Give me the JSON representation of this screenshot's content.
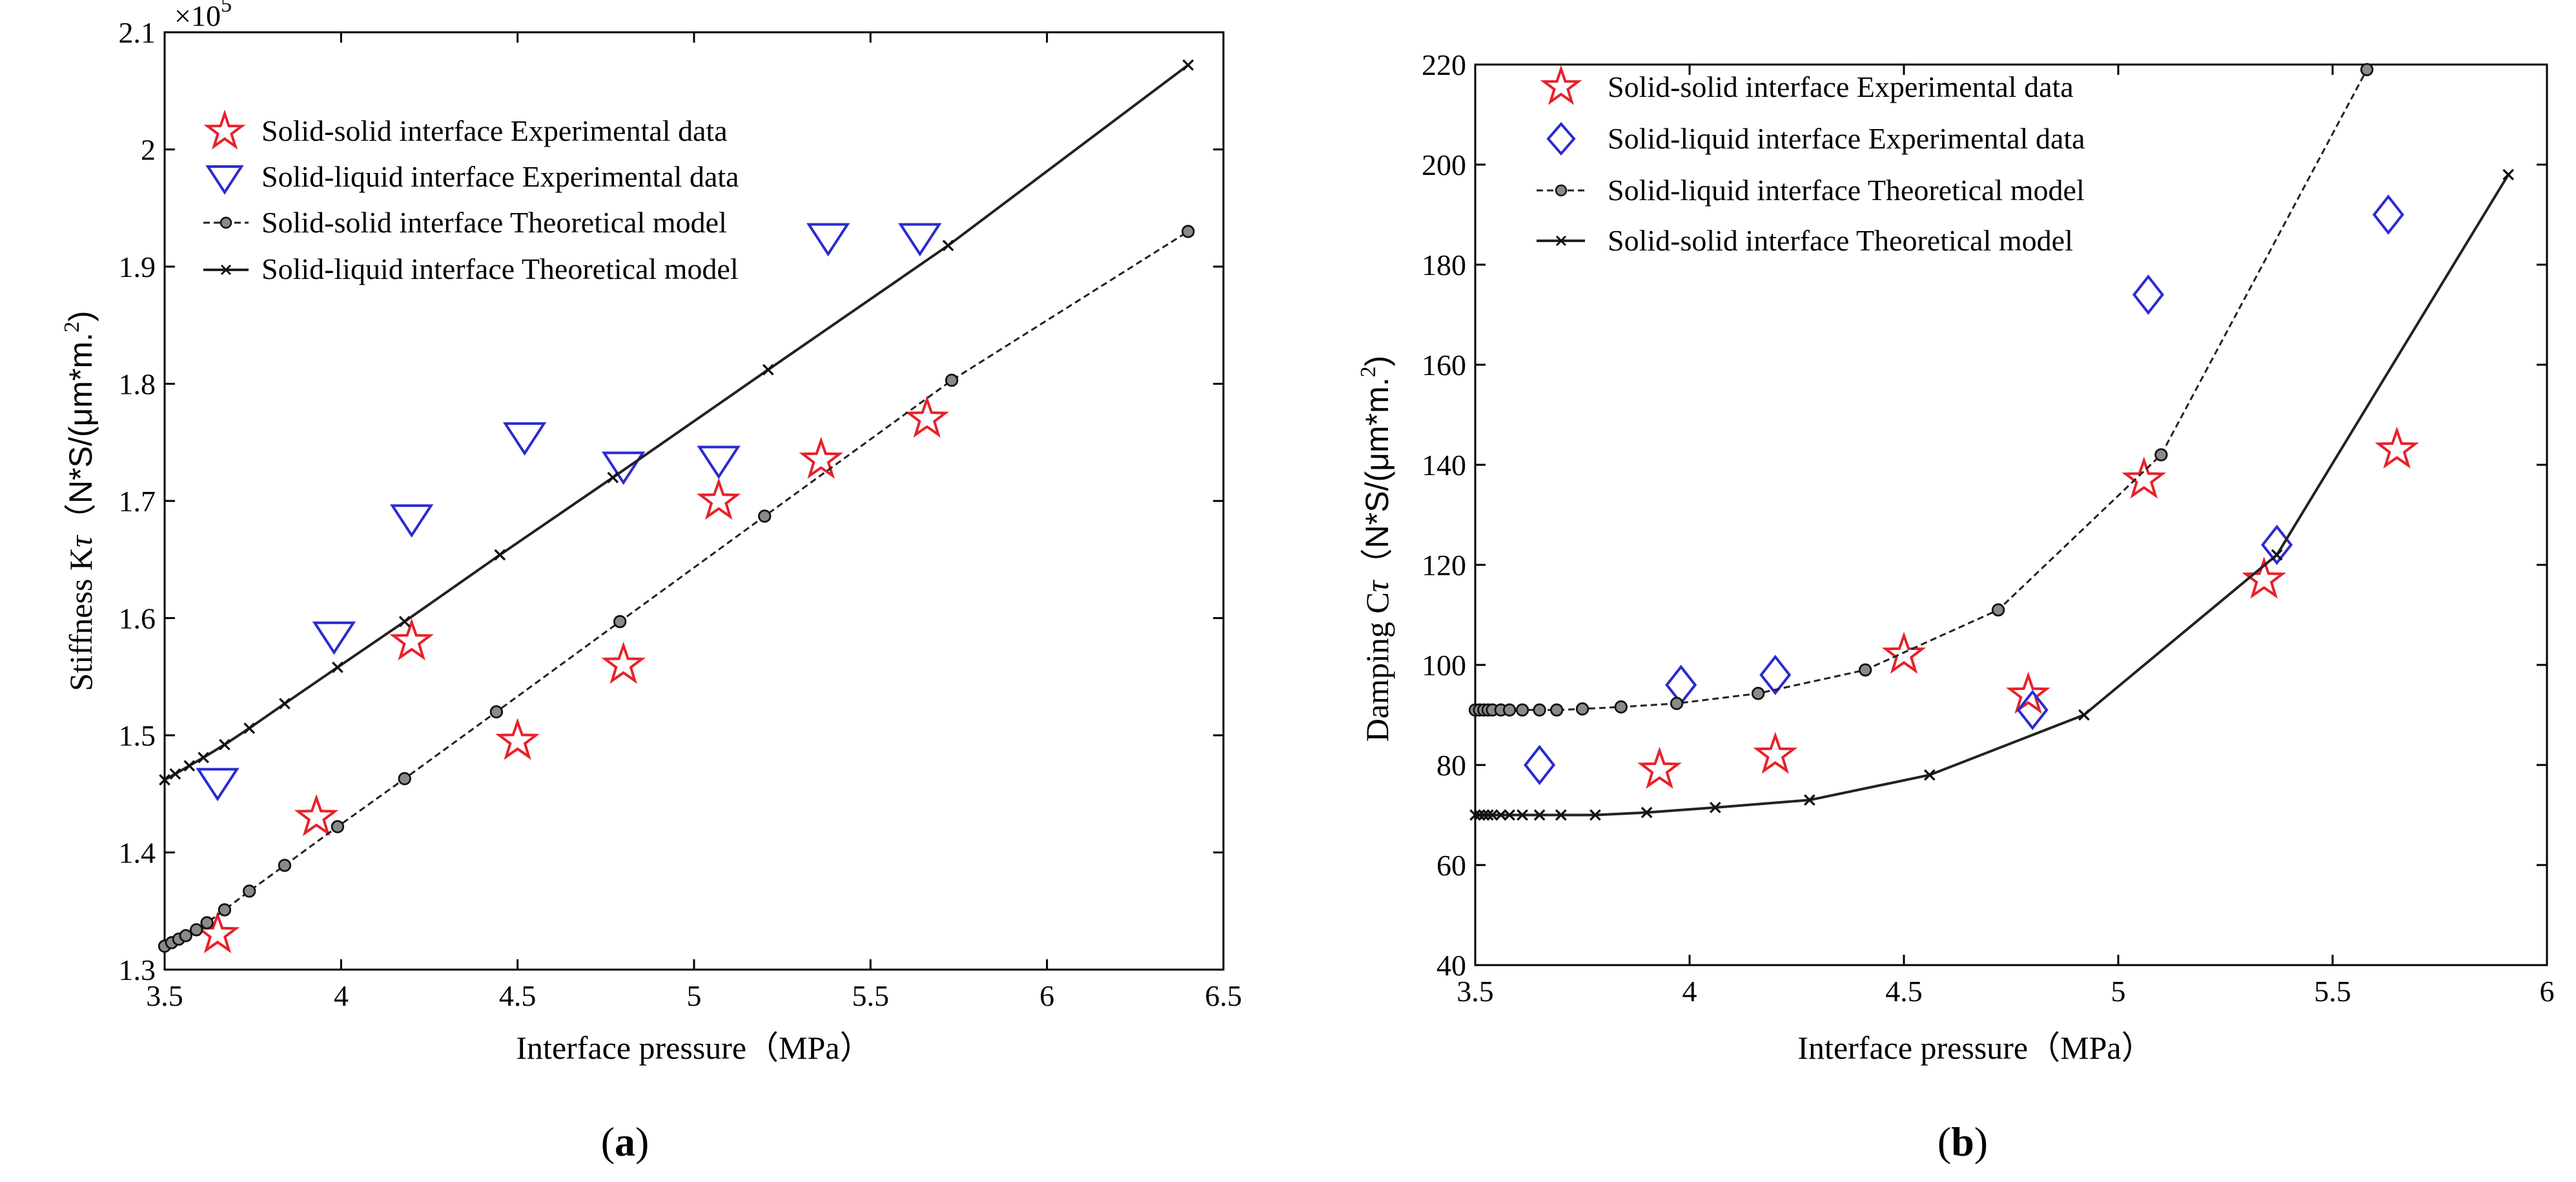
{
  "chart_data": [
    {
      "type": "line",
      "panel": "a",
      "caption": "(a)",
      "title": "",
      "xlabel": "Interface pressure（MPa）",
      "ylabel_text": "Stiffness K",
      "ylabel_sub": "τ",
      "ylabel_unit": "（N*S/(μm*m.",
      "ylabel_sup": "2",
      "ylabel_close": ")",
      "exponent_label": "×10",
      "exponent_power": "5",
      "xlim": [
        3.5,
        6.5
      ],
      "ylim": [
        1.3,
        2.1
      ],
      "xticks": [
        "3.5",
        "4",
        "4.5",
        "5",
        "5.5",
        "6",
        "6.5"
      ],
      "yticks": [
        "1.3",
        "1.4",
        "1.5",
        "1.6",
        "1.7",
        "1.8",
        "1.9",
        "2",
        "2.1"
      ],
      "legend_position": "top-left",
      "series": [
        {
          "name": "Solid-solid interface Experimental data",
          "style": "star",
          "color": "#e8202a",
          "x": [
            3.65,
            3.93,
            4.2,
            4.5,
            4.8,
            5.07,
            5.36,
            5.66
          ],
          "y": [
            1.33,
            1.43,
            1.58,
            1.495,
            1.56,
            1.7,
            1.735,
            1.77
          ]
        },
        {
          "name": "Solid-liquid interface Experimental data",
          "style": "triangle-down",
          "color": "#2a2ad0",
          "x": [
            3.65,
            3.98,
            4.2,
            4.52,
            4.8,
            5.07,
            5.38,
            5.64
          ],
          "y": [
            1.46,
            1.585,
            1.685,
            1.755,
            1.73,
            1.735,
            1.925,
            1.925
          ]
        },
        {
          "name": "Solid-solid interface Theoretical model",
          "style": "dashed-circle",
          "color": "#222222",
          "x": [
            3.5,
            3.52,
            3.54,
            3.56,
            3.59,
            3.62,
            3.67,
            3.74,
            3.84,
            3.99,
            4.18,
            4.44,
            4.79,
            5.2,
            5.73,
            6.4
          ],
          "y": [
            1.32,
            1.323,
            1.326,
            1.329,
            1.334,
            1.34,
            1.351,
            1.367,
            1.389,
            1.422,
            1.463,
            1.52,
            1.597,
            1.687,
            1.803,
            1.93
          ]
        },
        {
          "name": "Solid-liquid interface Theoretical model",
          "style": "solid-x",
          "color": "#222222",
          "x": [
            3.5,
            3.53,
            3.57,
            3.61,
            3.67,
            3.74,
            3.84,
            3.99,
            4.18,
            4.45,
            4.77,
            5.21,
            5.72,
            6.4
          ],
          "y": [
            1.462,
            1.467,
            1.474,
            1.481,
            1.492,
            1.506,
            1.527,
            1.558,
            1.597,
            1.654,
            1.72,
            1.812,
            1.918,
            2.072
          ]
        }
      ]
    },
    {
      "type": "line",
      "panel": "b",
      "caption": "(b)",
      "title": "",
      "xlabel": "Interface pressure（MPa）",
      "ylabel_text": "Damping C",
      "ylabel_sub": "τ",
      "ylabel_unit": "（N*S/(μm*m.",
      "ylabel_sup": "2",
      "ylabel_close": ")",
      "xlim": [
        3.5,
        6
      ],
      "ylim": [
        40,
        220
      ],
      "xticks": [
        "3.5",
        "4",
        "4.5",
        "5",
        "5.5",
        "6"
      ],
      "yticks": [
        "40",
        "60",
        "80",
        "100",
        "120",
        "140",
        "160",
        "180",
        "200",
        "220"
      ],
      "legend_position": "top-left",
      "series": [
        {
          "name": "Solid-solid interface Experimental data",
          "style": "star",
          "color": "#e8202a",
          "x": [
            3.93,
            4.2,
            4.5,
            4.79,
            5.06,
            5.34,
            5.65
          ],
          "y": [
            79,
            82,
            102,
            94,
            137,
            117,
            143
          ]
        },
        {
          "name": "Solid-liquid interface Experimental data",
          "style": "diamond",
          "color": "#2a2ad0",
          "x": [
            3.65,
            3.98,
            4.2,
            4.8,
            5.07,
            5.37,
            5.63
          ],
          "y": [
            80,
            96,
            98,
            91,
            174,
            124,
            190
          ]
        },
        {
          "name": "Solid-liquid interface Theoretical model",
          "style": "dashed-circle",
          "color": "#222222",
          "x": [
            3.5,
            3.51,
            3.52,
            3.53,
            3.54,
            3.56,
            3.58,
            3.61,
            3.65,
            3.69,
            3.75,
            3.84,
            3.97,
            4.16,
            4.41,
            4.72,
            5.1,
            5.58
          ],
          "y": [
            91,
            91,
            91,
            91,
            91,
            91,
            91,
            91,
            91,
            91,
            91.2,
            91.6,
            92.3,
            94.3,
            99,
            111,
            142,
            219
          ]
        },
        {
          "name": "Solid-solid interface Theoretical model",
          "style": "solid-x",
          "color": "#222222",
          "x": [
            3.5,
            3.51,
            3.52,
            3.53,
            3.54,
            3.56,
            3.58,
            3.61,
            3.65,
            3.7,
            3.78,
            3.9,
            4.06,
            4.28,
            4.56,
            4.92,
            5.37,
            5.91
          ],
          "y": [
            70,
            70,
            70,
            70,
            70,
            70,
            70,
            70,
            70,
            70,
            70,
            70.5,
            71.5,
            73,
            78,
            90,
            122,
            198
          ]
        }
      ]
    }
  ]
}
